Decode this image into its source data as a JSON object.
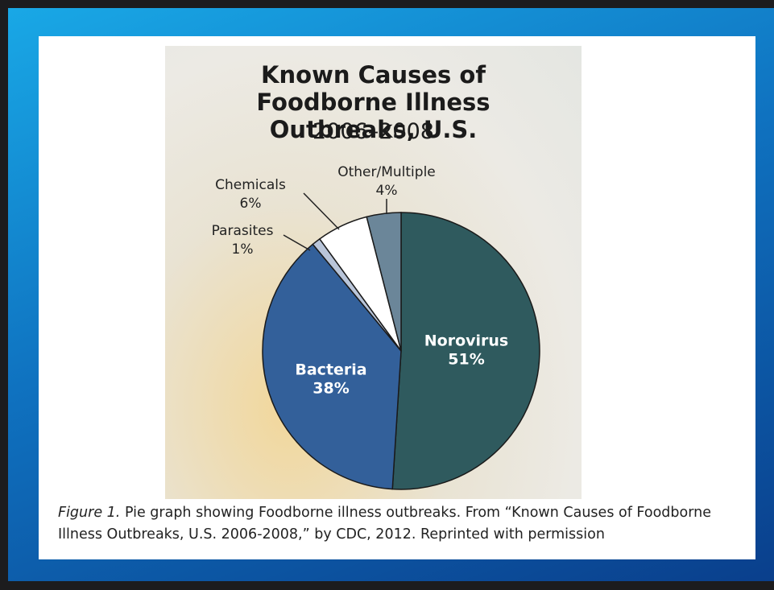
{
  "chart_data": {
    "type": "pie",
    "title": "Known Causes of Foodborne Illness Outbreaks, U.S.",
    "subtitle": "2006–2008",
    "categories": [
      "Norovirus",
      "Bacteria",
      "Parasites",
      "Chemicals",
      "Other/Multiple"
    ],
    "values": [
      51,
      38,
      1,
      6,
      4
    ],
    "value_labels": [
      "51%",
      "38%",
      "1%",
      "6%",
      "4%"
    ],
    "colors": [
      "#2f5a5e",
      "#33609a",
      "#b9c5d9",
      "#ffffff",
      "#6b8699"
    ],
    "caption_label": "Figure 1.",
    "caption": "Pie graph showing Foodborne illness outbreaks.  From “Known Causes of Foodborne Illness Outbreaks, U.S. 2006-2008,” by CDC, 2012. Reprinted with permission"
  }
}
